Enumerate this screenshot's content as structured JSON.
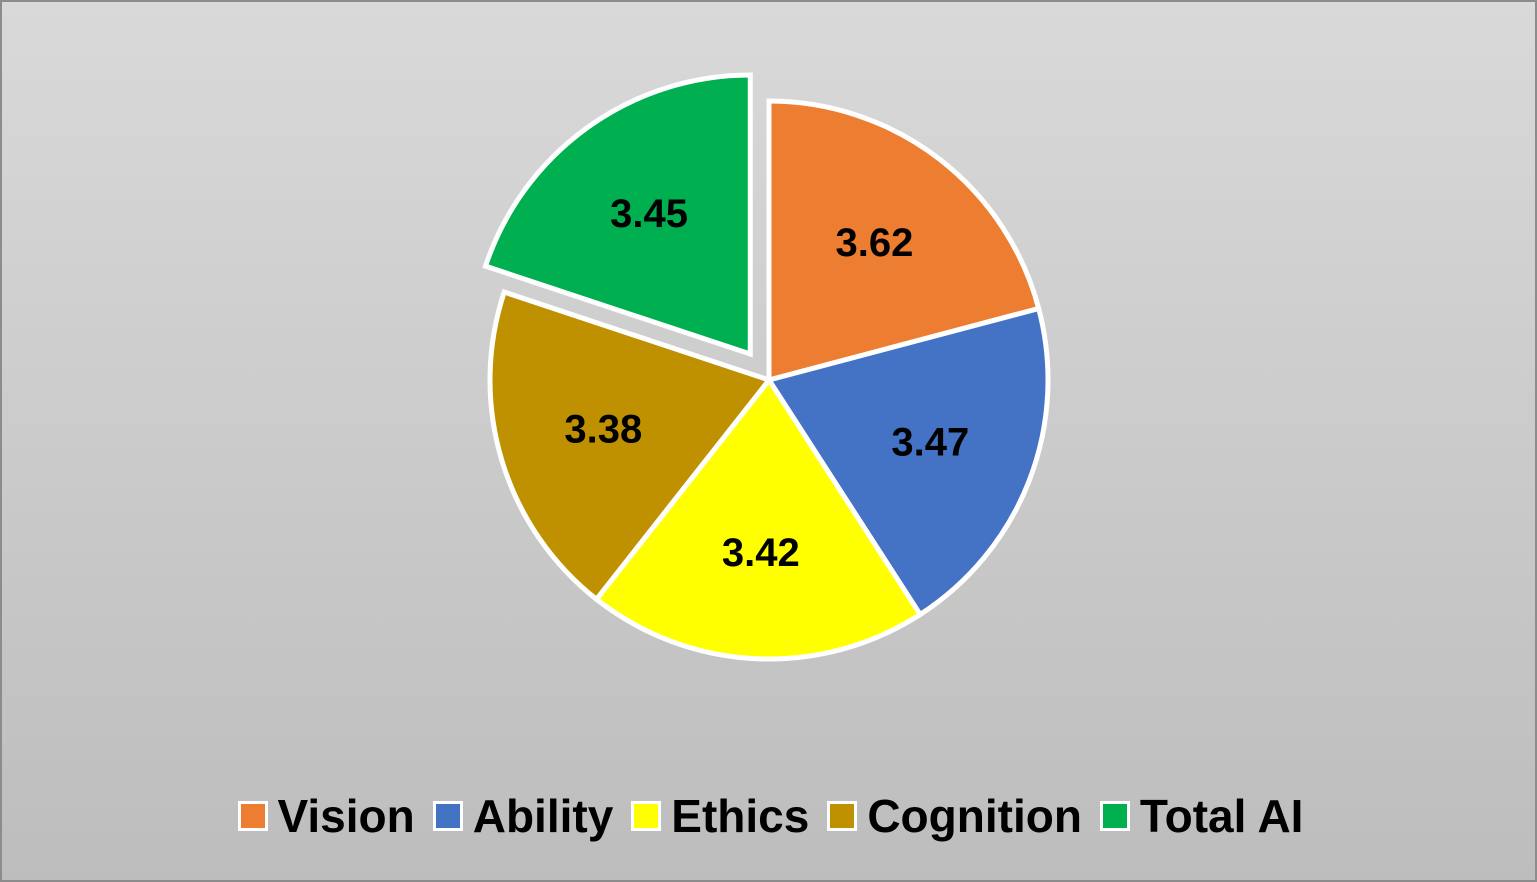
{
  "chart_data": {
    "type": "pie",
    "categories": [
      "Vision",
      "Ability",
      "Ethics",
      "Cognition",
      "Total AI"
    ],
    "values": [
      3.62,
      3.47,
      3.42,
      3.38,
      3.45
    ],
    "data_labels": [
      "3.62",
      "3.47",
      "3.42",
      "3.38",
      "3.45"
    ],
    "colors": [
      "#ED7D31",
      "#4472C4",
      "#FFFF00",
      "#BF9000",
      "#00B050"
    ],
    "exploded": [
      "Total AI"
    ],
    "legend_position": "bottom",
    "title": ""
  }
}
